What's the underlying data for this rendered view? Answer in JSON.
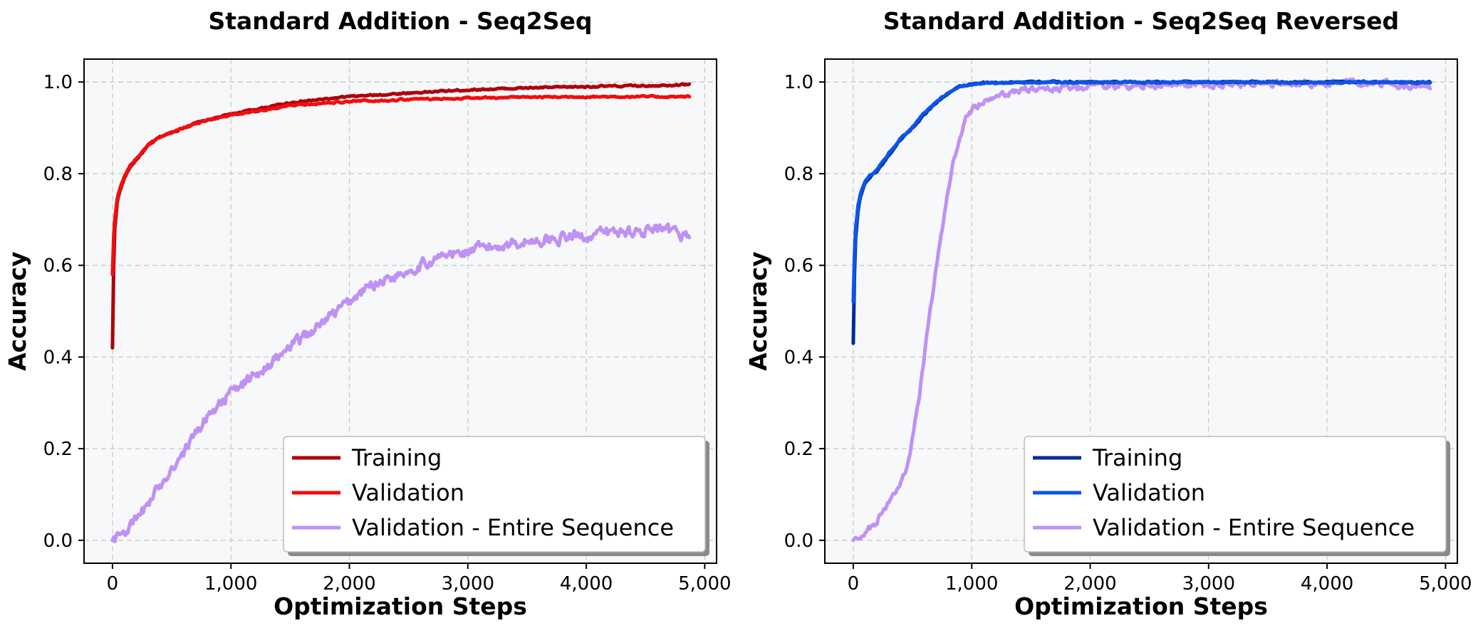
{
  "chart_data": [
    {
      "type": "line",
      "title": "Standard Addition - Seq2Seq",
      "xlabel": "Optimization Steps",
      "ylabel": "Accuracy",
      "xlim": [
        -240,
        5100
      ],
      "ylim": [
        -0.05,
        1.05
      ],
      "xticks": [
        "0",
        "1,000",
        "2,000",
        "3,000",
        "4,000",
        "5,000"
      ],
      "yticks": [
        "0.0",
        "0.2",
        "0.4",
        "0.6",
        "0.8",
        "1.0"
      ],
      "grid": true,
      "legend_position": "lower right",
      "series": [
        {
          "name": "Training",
          "color": "#b0000b",
          "noise": 0.002,
          "x": [
            0,
            10,
            20,
            40,
            60,
            100,
            150,
            200,
            300,
            400,
            500,
            700,
            1000,
            1500,
            2000,
            2500,
            3000,
            3500,
            4000,
            4500,
            4870
          ],
          "y": [
            0.42,
            0.6,
            0.68,
            0.74,
            0.76,
            0.79,
            0.815,
            0.83,
            0.86,
            0.88,
            0.89,
            0.91,
            0.93,
            0.955,
            0.968,
            0.976,
            0.983,
            0.987,
            0.99,
            0.992,
            0.995
          ]
        },
        {
          "name": "Validation",
          "color": "#f20d0d",
          "noise": 0.002,
          "x": [
            0,
            10,
            20,
            40,
            60,
            100,
            150,
            200,
            300,
            400,
            500,
            700,
            1000,
            1500,
            2000,
            2500,
            3000,
            3500,
            4000,
            4500,
            4870
          ],
          "y": [
            0.58,
            0.66,
            0.7,
            0.745,
            0.765,
            0.795,
            0.818,
            0.833,
            0.862,
            0.88,
            0.89,
            0.91,
            0.928,
            0.948,
            0.958,
            0.962,
            0.965,
            0.967,
            0.968,
            0.968,
            0.968
          ]
        },
        {
          "name": "Validation - Entire Sequence",
          "color": "#bf91f5",
          "noise": 0.014,
          "x": [
            0,
            100,
            200,
            300,
            400,
            500,
            600,
            700,
            800,
            900,
            1000,
            1200,
            1400,
            1600,
            1800,
            2000,
            2200,
            2400,
            2600,
            2800,
            3000,
            3200,
            3400,
            3600,
            3800,
            4000,
            4200,
            4400,
            4600,
            4870
          ],
          "y": [
            0.0,
            0.02,
            0.04,
            0.08,
            0.12,
            0.16,
            0.19,
            0.23,
            0.27,
            0.3,
            0.32,
            0.36,
            0.4,
            0.44,
            0.48,
            0.52,
            0.56,
            0.58,
            0.6,
            0.62,
            0.63,
            0.64,
            0.65,
            0.655,
            0.66,
            0.665,
            0.67,
            0.675,
            0.675,
            0.665
          ]
        }
      ]
    },
    {
      "type": "line",
      "title": "Standard Addition - Seq2Seq Reversed",
      "xlabel": "Optimization Steps",
      "ylabel": "Accuracy",
      "xlim": [
        -240,
        5100
      ],
      "ylim": [
        -0.05,
        1.05
      ],
      "xticks": [
        "0",
        "1,000",
        "2,000",
        "3,000",
        "4,000",
        "5,000"
      ],
      "yticks": [
        "0.0",
        "0.2",
        "0.4",
        "0.6",
        "0.8",
        "1.0"
      ],
      "grid": true,
      "legend_position": "lower right",
      "series": [
        {
          "name": "Training",
          "color": "#002d96",
          "noise": 0.002,
          "x": [
            0,
            10,
            20,
            40,
            60,
            100,
            150,
            200,
            300,
            400,
            500,
            600,
            700,
            800,
            900,
            1000,
            1100,
            1200,
            1500,
            2000,
            2500,
            3000,
            3500,
            4000,
            4500,
            4870
          ],
          "y": [
            0.43,
            0.58,
            0.66,
            0.72,
            0.75,
            0.78,
            0.795,
            0.805,
            0.84,
            0.875,
            0.9,
            0.93,
            0.955,
            0.975,
            0.99,
            0.995,
            0.998,
            0.999,
            1.0,
            1.0,
            1.0,
            1.0,
            1.0,
            1.0,
            1.0,
            1.0
          ]
        },
        {
          "name": "Validation",
          "color": "#0a55eb",
          "noise": 0.002,
          "x": [
            0,
            10,
            20,
            40,
            60,
            100,
            150,
            200,
            300,
            400,
            500,
            600,
            700,
            800,
            900,
            1000,
            1100,
            1200,
            1500,
            2000,
            2500,
            3000,
            3500,
            4000,
            4500,
            4870
          ],
          "y": [
            0.52,
            0.62,
            0.68,
            0.73,
            0.755,
            0.782,
            0.798,
            0.808,
            0.845,
            0.878,
            0.902,
            0.932,
            0.956,
            0.976,
            0.99,
            0.995,
            0.997,
            0.998,
            0.999,
            0.999,
            0.999,
            0.999,
            0.999,
            0.999,
            0.999,
            0.999
          ]
        },
        {
          "name": "Validation - Entire Sequence",
          "color": "#bf91f5",
          "noise": 0.008,
          "x": [
            0,
            100,
            200,
            300,
            350,
            400,
            450,
            500,
            550,
            600,
            650,
            700,
            750,
            800,
            850,
            900,
            950,
            1000,
            1100,
            1200,
            1300,
            1400,
            1600,
            1800,
            2000,
            2500,
            3000,
            3500,
            4000,
            4500,
            4870
          ],
          "y": [
            0.0,
            0.02,
            0.04,
            0.08,
            0.1,
            0.12,
            0.16,
            0.22,
            0.3,
            0.4,
            0.5,
            0.6,
            0.68,
            0.76,
            0.83,
            0.88,
            0.92,
            0.94,
            0.96,
            0.97,
            0.975,
            0.98,
            0.985,
            0.988,
            0.99,
            0.993,
            0.995,
            0.996,
            0.997,
            0.997,
            0.99
          ]
        }
      ]
    }
  ]
}
